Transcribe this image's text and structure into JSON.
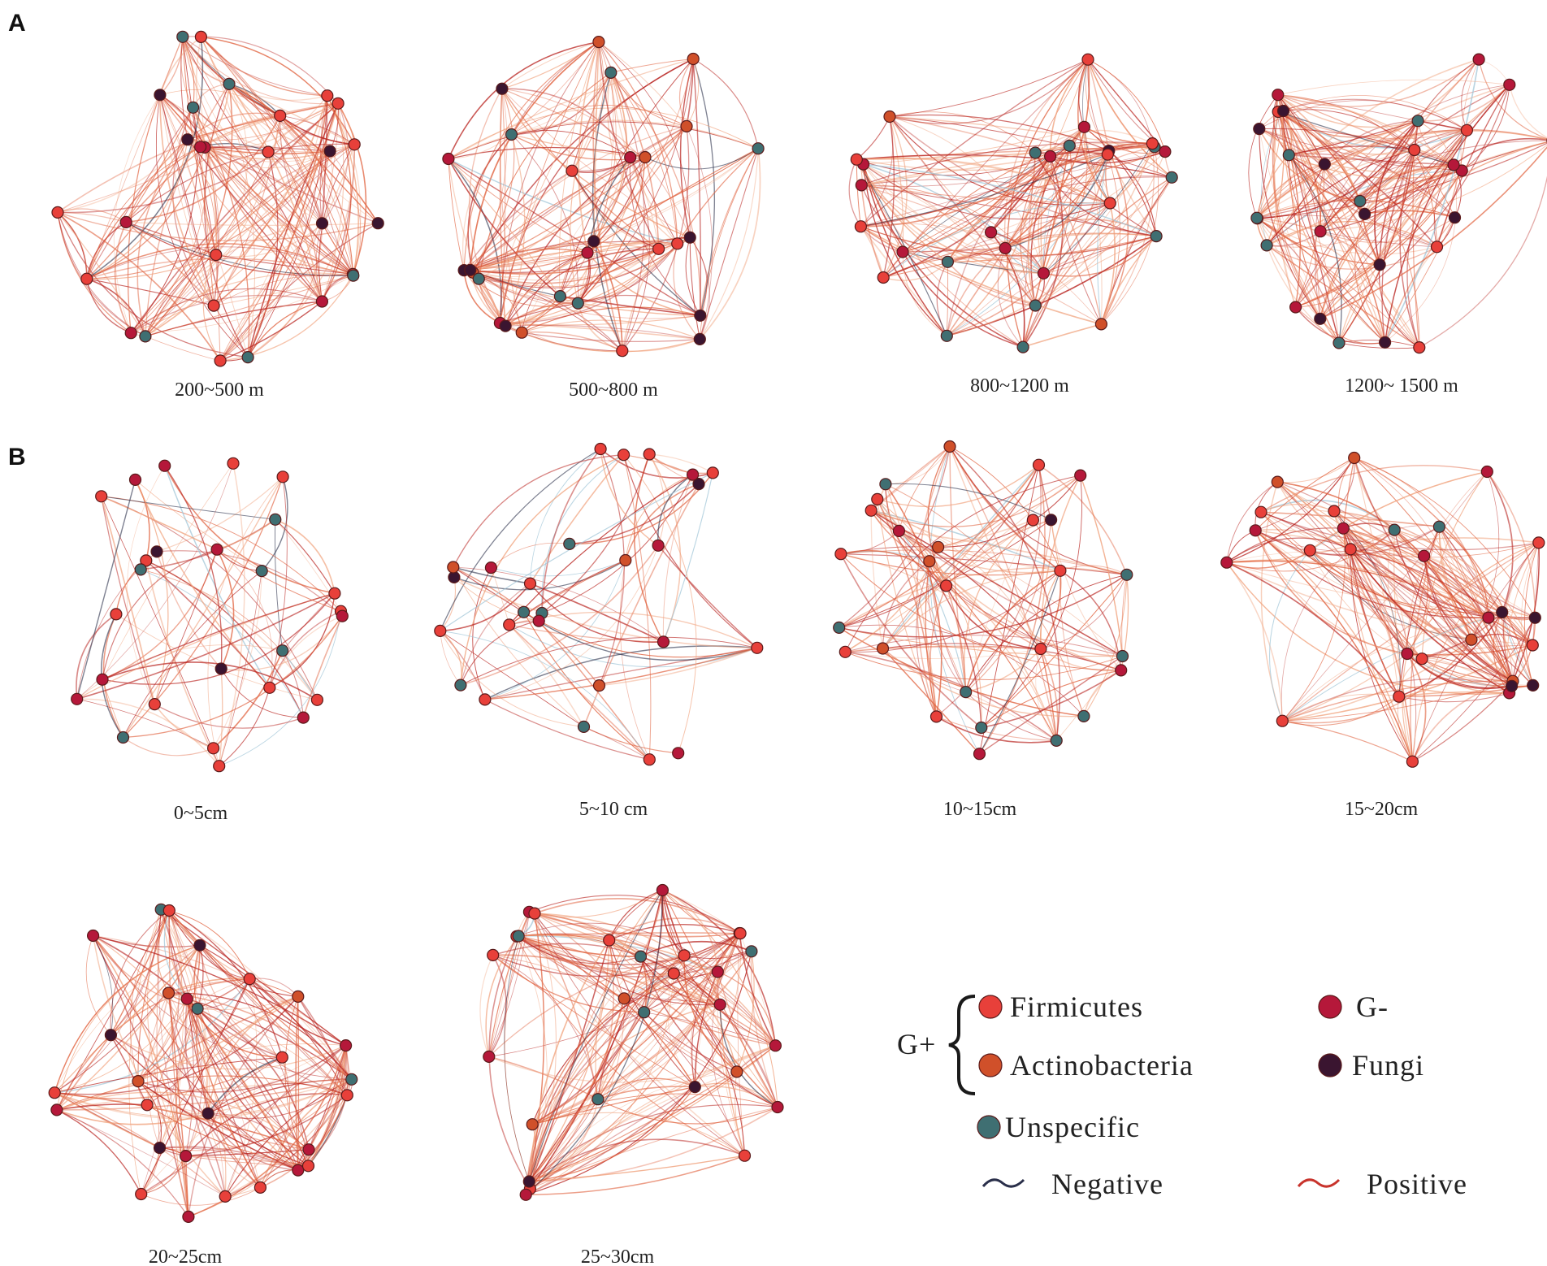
{
  "panels": [
    {
      "letter": "A"
    },
    {
      "letter": "B"
    }
  ],
  "colors": {
    "firmicutes": "#e8403a",
    "actinobacteria": "#d0502a",
    "g_minus": "#b5183a",
    "fungi": "#3a1530",
    "unspecific": "#3f6f72",
    "negative_edge": "#2a2f4a",
    "positive_edge": "#c8332c"
  },
  "networks": [
    {
      "id": "a1",
      "panel": "A",
      "label": "200~500 m",
      "density": "high"
    },
    {
      "id": "a2",
      "panel": "A",
      "label": "500~800 m",
      "density": "high"
    },
    {
      "id": "a3",
      "panel": "A",
      "label": "800~1200 m",
      "density": "high"
    },
    {
      "id": "a4",
      "panel": "A",
      "label": "1200~ 1500 m",
      "density": "high"
    },
    {
      "id": "b1",
      "panel": "B",
      "label": "0~5cm",
      "density": "low"
    },
    {
      "id": "b2",
      "panel": "B",
      "label": "5~10 cm",
      "density": "low"
    },
    {
      "id": "b3",
      "panel": "B",
      "label": "10~15cm",
      "density": "medium"
    },
    {
      "id": "b4",
      "panel": "B",
      "label": "15~20cm",
      "density": "high"
    },
    {
      "id": "b5",
      "panel": "B",
      "label": "20~25cm",
      "density": "high"
    },
    {
      "id": "b6",
      "panel": "B",
      "label": "25~30cm",
      "density": "high"
    }
  ],
  "legend": {
    "group_label": "G+",
    "items": [
      {
        "key": "firmicutes",
        "label": "Firmicutes",
        "icon": "node-dot"
      },
      {
        "key": "actinobacteria",
        "label": "Actinobacteria",
        "icon": "node-dot"
      },
      {
        "key": "g_minus",
        "label": "G-",
        "icon": "node-dot"
      },
      {
        "key": "fungi",
        "label": "Fungi",
        "icon": "node-dot"
      },
      {
        "key": "unspecific",
        "label": "Unspecific",
        "icon": "node-dot"
      }
    ],
    "edges": [
      {
        "key": "negative_edge",
        "label": "Negative",
        "icon": "wave-line"
      },
      {
        "key": "positive_edge",
        "label": "Positive",
        "icon": "wave-line"
      }
    ]
  }
}
